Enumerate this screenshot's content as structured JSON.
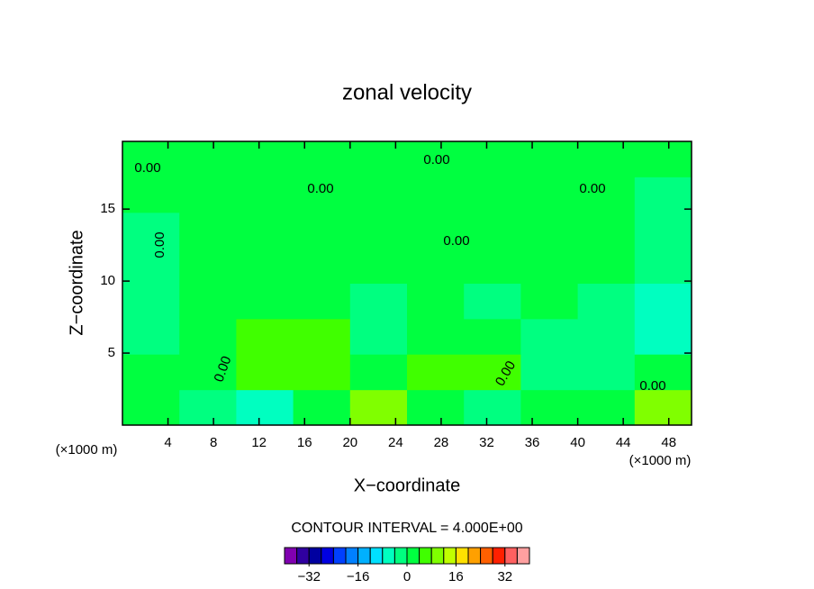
{
  "chart_data": {
    "type": "contour",
    "title": "zonal velocity",
    "x_label": "X−coordinate",
    "y_label": "Z−coordinate",
    "x_unit_left": "(×1000 m)",
    "x_unit_right": "(×1000 m)",
    "contour_interval_text": "CONTOUR INTERVAL = 4.000E+00",
    "xlim": [
      0,
      50
    ],
    "ylim": [
      0,
      19.7
    ],
    "xticks": [
      4,
      8,
      12,
      16,
      20,
      24,
      28,
      32,
      36,
      40,
      44,
      48
    ],
    "yticks": [
      5,
      10,
      15
    ],
    "x": [
      2.5,
      7.5,
      12.5,
      17.5,
      22.5,
      27.5,
      32.5,
      37.5,
      42.5,
      47.5
    ],
    "y": [
      1.23,
      3.69,
      6.16,
      8.62,
      11.08,
      13.54,
      16.0,
      18.47
    ],
    "z": [
      [
        3,
        -4,
        -5,
        2,
        9,
        2,
        -4,
        3,
        2,
        9
      ],
      [
        2,
        1,
        6,
        4,
        2,
        5,
        6,
        -2,
        -3,
        1
      ],
      [
        -2,
        1,
        6,
        7,
        -3,
        2,
        2,
        -2,
        -3,
        -5
      ],
      [
        -2,
        1,
        2,
        1,
        -1,
        1,
        -1,
        1,
        -2,
        -5
      ],
      [
        -1,
        2,
        2,
        2,
        1,
        1,
        2,
        2,
        1,
        -2
      ],
      [
        -1,
        2,
        2,
        2,
        2,
        2,
        2,
        2,
        1,
        -1
      ],
      [
        2,
        2,
        2,
        2,
        2,
        2,
        2,
        2,
        2,
        -1
      ],
      [
        1,
        1,
        1,
        1,
        1,
        1,
        1,
        1,
        1,
        1
      ]
    ],
    "levels": [
      -40,
      -36,
      -32,
      -28,
      -24,
      -20,
      -16,
      -12,
      -8,
      -4,
      0,
      4,
      8,
      12,
      16,
      20,
      24,
      28,
      32,
      36,
      40
    ],
    "colors": [
      "#8000b0",
      "#3000a0",
      "#0000a0",
      "#0000e0",
      "#0040ff",
      "#0080ff",
      "#00b0ff",
      "#00e0ff",
      "#00ffc0",
      "#00ff80",
      "#00ff40",
      "#40ff00",
      "#80ff00",
      "#c0ff00",
      "#ffe000",
      "#ffa000",
      "#ff6000",
      "#ff2000",
      "#ff6060",
      "#ffa0a0"
    ],
    "colorbar_ticks": [
      {
        "value": -32,
        "label": "−32"
      },
      {
        "value": -16,
        "label": "−16"
      },
      0,
      16,
      32
    ],
    "contour_labels": [
      "0.00",
      "0.00",
      "0.00",
      "0.00",
      "0.00",
      "0.00",
      "0.00",
      "0.00",
      "0.00"
    ]
  }
}
